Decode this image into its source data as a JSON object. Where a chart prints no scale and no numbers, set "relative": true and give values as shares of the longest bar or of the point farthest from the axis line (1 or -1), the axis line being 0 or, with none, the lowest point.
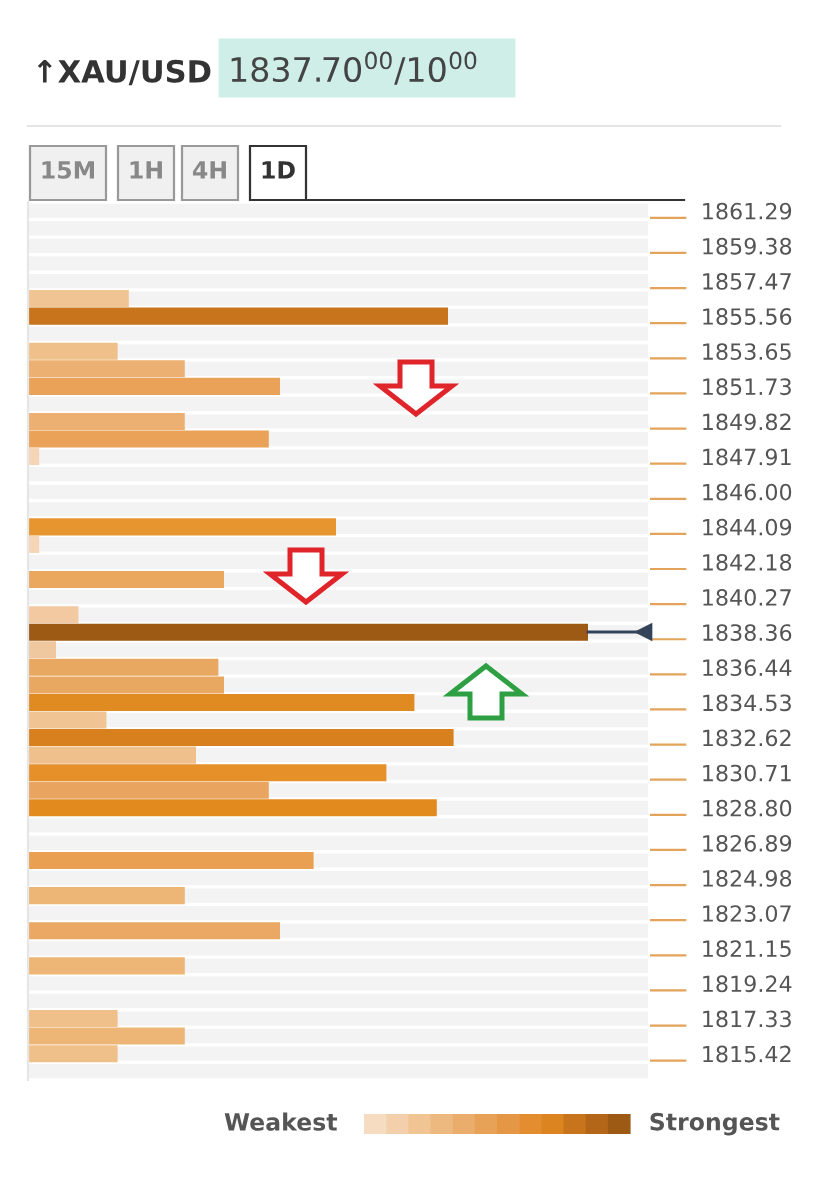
{
  "chart_data": {
    "type": "bar",
    "orientation": "horizontal",
    "relative": true,
    "title": "↑XAU/USD",
    "subtitle": "1837.70$^{00}$/10$^{00}$",
    "annotations": [
      "15M",
      "1H",
      "4H",
      "1D",
      "Weakest",
      "Strongest"
    ],
    "categories": [
      "1861.29",
      null,
      "1859.38",
      null,
      "1857.47",
      null,
      "1855.56",
      null,
      "1853.65",
      null,
      "1851.73",
      null,
      "1849.82",
      null,
      "1847.91",
      null,
      "1846.00",
      null,
      "1844.09",
      null,
      "1842.18",
      null,
      "1840.27",
      null,
      "1838.36",
      null,
      "1836.44",
      null,
      "1834.53",
      null,
      "1832.62",
      null,
      "1830.71",
      null,
      "1828.80",
      null,
      "1826.89",
      null,
      "1824.98",
      null,
      "1823.07",
      null,
      "1821.15",
      null,
      "1819.24",
      null,
      "1817.33",
      null,
      "1815.42",
      null
    ],
    "values": [
      null,
      null,
      null,
      null,
      null,
      0.18,
      0.75,
      null,
      0.16,
      0.28,
      0.45,
      null,
      0.28,
      0.43,
      0.02,
      null,
      null,
      null,
      0.55,
      0.02,
      null,
      0.35,
      null,
      0.09,
      1.0,
      0.05,
      0.34,
      0.35,
      0.69,
      0.14,
      0.76,
      0.3,
      0.64,
      0.43,
      0.73,
      null,
      null,
      0.51,
      null,
      0.28,
      null,
      0.45,
      null,
      0.28,
      null,
      null,
      0.16,
      0.28,
      0.16,
      null
    ],
    "colors": [
      "#ffffff",
      "#ffffff",
      "#ffffff",
      "#ffffff",
      "#ffffff",
      "#f0c593",
      "#c8741c",
      "#ffffff",
      "#f0c08a",
      "#edb073",
      "#e9a258",
      "#ffffff",
      "#edb073",
      "#e9a258",
      "#f5d5b5",
      "#ffffff",
      "#ffffff",
      "#ffffff",
      "#e6952f",
      "#f5d5b5",
      "#ffffff",
      "#eaa75e",
      "#ffffff",
      "#f2c9a0",
      "#9c5a14",
      "#f0c8a0",
      "#e9a862",
      "#e9a862",
      "#e08a22",
      "#f0c593",
      "#d8801e",
      "#efc08c",
      "#e6902a",
      "#e9a560",
      "#e38a1e",
      "#ffffff",
      "#ffffff",
      "#e9a050",
      "#ffffff",
      "#edb576",
      "#ffffff",
      "#eba865",
      "#ffffff",
      "#edb576",
      "#ffffff",
      "#ffffff",
      "#f0c08a",
      "#edb576",
      "#f0c08a",
      "#ffffff"
    ],
    "legend": false
  }
}
